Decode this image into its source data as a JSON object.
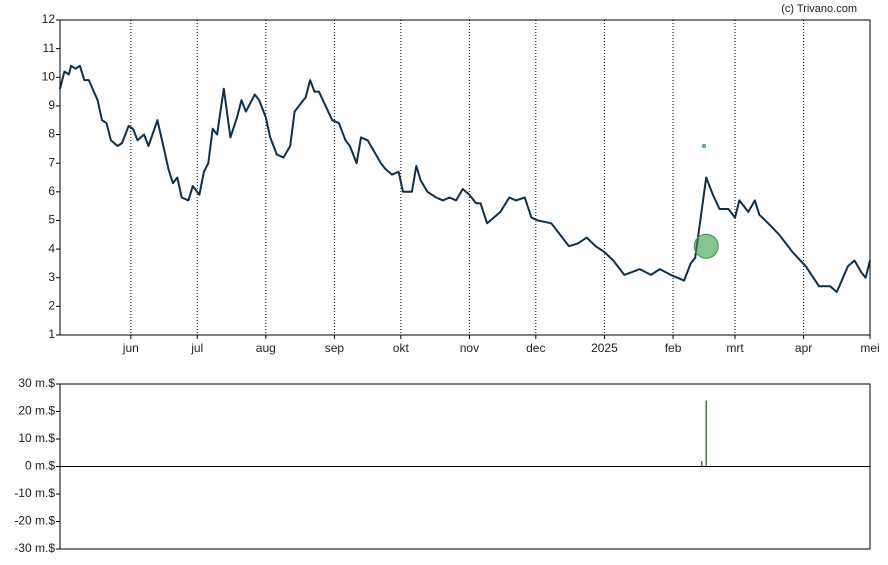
{
  "chart_data": [
    {
      "type": "line",
      "credit": "(c) Trivano.com",
      "color": "#0f2f4a",
      "x": [
        0,
        2,
        4,
        5,
        7,
        9,
        11,
        13,
        17,
        19,
        21,
        23,
        26,
        28,
        31,
        33,
        35,
        38,
        40,
        44,
        47,
        49,
        51,
        53,
        55,
        58,
        60,
        63,
        65,
        67,
        69,
        71,
        74,
        77,
        80,
        82,
        84,
        88,
        90,
        93,
        95,
        98,
        101,
        104,
        106,
        108,
        111,
        113,
        115,
        117,
        120,
        123,
        126,
        129,
        131,
        134,
        136,
        139,
        142,
        145,
        147,
        150,
        153,
        155,
        159,
        161,
        163,
        166,
        170,
        173,
        176,
        179,
        182,
        185,
        188,
        190,
        193,
        196,
        199,
        203,
        206,
        210,
        213,
        216,
        222,
        226,
        230,
        234,
        238,
        242,
        246,
        250,
        255,
        262,
        267,
        271,
        276,
        282,
        285,
        287,
        292,
        295,
        298,
        302,
        305,
        307,
        311,
        314,
        316,
        320,
        325,
        331,
        337,
        343,
        348,
        351,
        356,
        359,
        362,
        364,
        366
      ],
      "values": [
        9.6,
        10.2,
        10.1,
        10.4,
        10.3,
        10.4,
        9.9,
        9.9,
        9.2,
        8.5,
        8.4,
        7.8,
        7.6,
        7.7,
        8.3,
        8.2,
        7.8,
        8.0,
        7.6,
        8.5,
        7.5,
        6.8,
        6.3,
        6.5,
        5.8,
        5.7,
        6.2,
        5.9,
        6.7,
        7.0,
        8.2,
        8.0,
        9.6,
        7.9,
        8.6,
        9.2,
        8.8,
        9.4,
        9.2,
        8.6,
        7.9,
        7.3,
        7.2,
        7.6,
        8.8,
        9.0,
        9.3,
        9.9,
        9.5,
        9.5,
        9.0,
        8.5,
        8.4,
        7.8,
        7.6,
        7.0,
        7.9,
        7.8,
        7.4,
        7.0,
        6.8,
        6.6,
        6.7,
        6.0,
        6.0,
        6.9,
        6.4,
        6.0,
        5.8,
        5.7,
        5.8,
        5.7,
        6.1,
        5.9,
        5.6,
        5.6,
        4.9,
        5.1,
        5.3,
        5.8,
        5.7,
        5.8,
        5.1,
        5.0,
        4.9,
        4.5,
        4.1,
        4.2,
        4.4,
        4.1,
        3.9,
        3.6,
        3.1,
        3.3,
        3.1,
        3.3,
        3.1,
        2.9,
        3.5,
        3.7,
        6.5,
        5.9,
        5.4,
        5.4,
        5.1,
        5.7,
        5.3,
        5.7,
        5.2,
        4.9,
        4.5,
        3.9,
        3.4,
        2.7,
        2.7,
        2.5,
        3.4,
        3.6,
        3.2,
        3.0,
        3.6
      ],
      "markers": {
        "x": [
          292,
          291
        ],
        "y": [
          4.1,
          7.6
        ],
        "color": "#3a9a4a"
      },
      "xlim": [
        0,
        366
      ],
      "xticks": [
        {
          "value": 32,
          "label": "jun"
        },
        {
          "value": 62,
          "label": "jul"
        },
        {
          "value": 93,
          "label": "aug"
        },
        {
          "value": 124,
          "label": "sep"
        },
        {
          "value": 154,
          "label": "okt"
        },
        {
          "value": 185,
          "label": "nov"
        },
        {
          "value": 215,
          "label": "dec"
        },
        {
          "value": 246,
          "label": "2025"
        },
        {
          "value": 277,
          "label": "feb"
        },
        {
          "value": 305,
          "label": "mrt"
        },
        {
          "value": 336,
          "label": "apr"
        },
        {
          "value": 366,
          "label": "mei"
        }
      ],
      "ylim": [
        1,
        12
      ],
      "yticks": [
        1,
        2,
        3,
        4,
        5,
        6,
        7,
        8,
        9,
        10,
        11,
        12
      ]
    },
    {
      "type": "bar",
      "color": "#2e8b3e",
      "x": [
        290,
        292
      ],
      "values": [
        2,
        24
      ],
      "xlim": [
        0,
        366
      ],
      "ylim": [
        -30,
        30
      ],
      "yticks": [
        {
          "value": 30,
          "label": "30 m.$"
        },
        {
          "value": 20,
          "label": "20 m.$"
        },
        {
          "value": 10,
          "label": "10 m.$"
        },
        {
          "value": 0,
          "label": "0 m.$"
        },
        {
          "value": -10,
          "label": "-10 m.$"
        },
        {
          "value": -20,
          "label": "-20 m.$"
        },
        {
          "value": -30,
          "label": "-30 m.$"
        }
      ]
    }
  ]
}
